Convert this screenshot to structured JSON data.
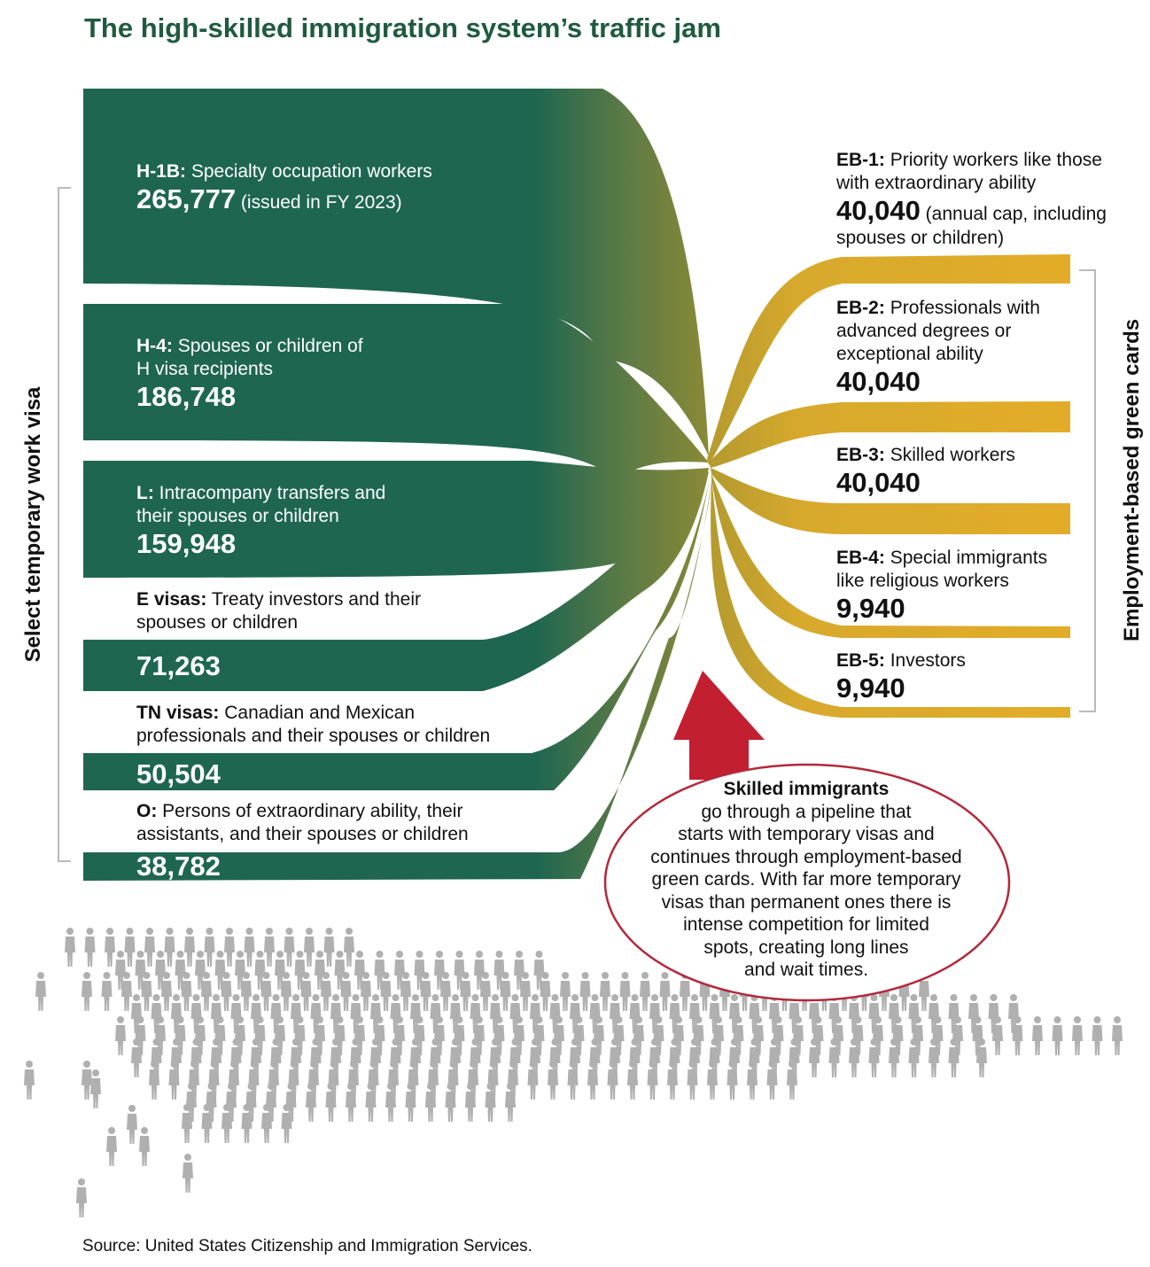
{
  "title": "The high-skilled immigration system’s traffic jam",
  "left_axis_label": "Select temporary work visa",
  "right_axis_label": "Employment-based green cards",
  "temporary_visas": [
    {
      "code": "H-1B:",
      "description_lines": [
        "Specialty occupation workers"
      ],
      "value": "265,777",
      "note": "(issued in FY 2023)"
    },
    {
      "code": "H-4:",
      "description_lines": [
        "Spouses or children of",
        "H visa recipients"
      ],
      "value": "186,748"
    },
    {
      "code": "L:",
      "description_lines": [
        "Intracompany transfers and",
        "their spouses or children"
      ],
      "value": "159,948"
    },
    {
      "code": "E visas:",
      "description_lines": [
        "Treaty investors and their",
        "spouses or children"
      ],
      "value": "71,263"
    },
    {
      "code": "TN visas:",
      "description_lines": [
        "Canadian and Mexican",
        "professionals and their spouses or children"
      ],
      "value": "50,504"
    },
    {
      "code": "O:",
      "description_lines": [
        "Persons of extraordinary ability, their",
        "assistants, and their spouses or children"
      ],
      "value": "38,782"
    }
  ],
  "green_cards": [
    {
      "code": "EB-1:",
      "description_lines": [
        "Priority workers like those",
        "with extraordinary ability"
      ],
      "value": "40,040",
      "note_lines": [
        "(annual cap, including",
        "spouses or children)"
      ]
    },
    {
      "code": "EB-2:",
      "description_lines": [
        "Professionals with",
        "advanced degrees or",
        "exceptional ability"
      ],
      "value": "40,040"
    },
    {
      "code": "EB-3:",
      "description_lines": [
        "Skilled workers"
      ],
      "value": "40,040"
    },
    {
      "code": "EB-4:",
      "description_lines": [
        "Special immigrants",
        "like religious workers"
      ],
      "value": "9,940"
    },
    {
      "code": "EB-5:",
      "description_lines": [
        "Investors"
      ],
      "value": "9,940"
    }
  ],
  "callout": {
    "title": "Skilled immigrants",
    "lines": [
      "go through a pipeline that",
      "starts with temporary visas and",
      "continues through employment-based",
      "green cards. With far more temporary",
      "visas than permanent ones there is",
      "intense competition for limited",
      "spots, creating long lines",
      "and wait times."
    ]
  },
  "source": "Source: United States Citizenship and Immigration Services.",
  "colors": {
    "temporary_flow": "#1e6650",
    "green_card_flow": "#e2ac28",
    "title": "#1f5a3f",
    "arrow": "#c21f30",
    "callout_border": "#b3283a",
    "people": "#b0b0b0",
    "bracket": "#bbbbbb"
  },
  "icons": {
    "people": "person-icon",
    "arrow": "up-arrow-icon"
  }
}
